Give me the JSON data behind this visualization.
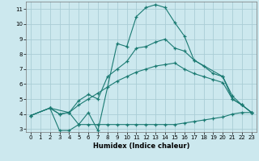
{
  "xlabel": "Humidex (Indice chaleur)",
  "xlim": [
    -0.5,
    23.5
  ],
  "ylim": [
    2.8,
    11.5
  ],
  "xticks": [
    0,
    1,
    2,
    3,
    4,
    5,
    6,
    7,
    8,
    9,
    10,
    11,
    12,
    13,
    14,
    15,
    16,
    17,
    18,
    19,
    20,
    21,
    22,
    23
  ],
  "yticks": [
    3,
    4,
    5,
    6,
    7,
    8,
    9,
    10,
    11
  ],
  "background_color": "#cce8ee",
  "grid_color": "#aacdd6",
  "line_color": "#1a7a72",
  "lines": [
    {
      "x": [
        0,
        2,
        3,
        4,
        5,
        6,
        7,
        8,
        9,
        10,
        11,
        12,
        13,
        14,
        15,
        16,
        17,
        18,
        19,
        20,
        21,
        22,
        23
      ],
      "y": [
        3.9,
        4.4,
        2.9,
        2.9,
        3.3,
        3.3,
        3.3,
        3.3,
        3.3,
        3.3,
        3.3,
        3.3,
        3.3,
        3.3,
        3.3,
        3.4,
        3.5,
        3.6,
        3.7,
        3.8,
        4.0,
        4.1,
        4.1
      ]
    },
    {
      "x": [
        0,
        2,
        3,
        4,
        5,
        6,
        7,
        8,
        9,
        10,
        11,
        12,
        13,
        14,
        15,
        16,
        17,
        18,
        19,
        20,
        21,
        22,
        23
      ],
      "y": [
        3.9,
        4.4,
        4.0,
        4.1,
        4.6,
        5.0,
        5.4,
        5.8,
        6.2,
        6.5,
        6.8,
        7.0,
        7.2,
        7.3,
        7.4,
        7.0,
        6.7,
        6.5,
        6.3,
        6.1,
        5.0,
        4.6,
        4.1
      ]
    },
    {
      "x": [
        0,
        2,
        3,
        4,
        5,
        6,
        7,
        8,
        9,
        10,
        11,
        12,
        13,
        14,
        15,
        16,
        17,
        18,
        19,
        20,
        21,
        22,
        23
      ],
      "y": [
        3.9,
        4.4,
        4.0,
        4.1,
        4.9,
        5.3,
        5.0,
        6.5,
        7.0,
        7.5,
        8.4,
        8.5,
        8.8,
        9.0,
        8.4,
        8.2,
        7.6,
        7.2,
        6.7,
        6.5,
        5.0,
        4.6,
        4.1
      ]
    },
    {
      "x": [
        2,
        4,
        5,
        6,
        7,
        9,
        10,
        11,
        12,
        13,
        14,
        15,
        16,
        17,
        20,
        21,
        22,
        23
      ],
      "y": [
        4.4,
        4.1,
        3.3,
        4.1,
        2.9,
        8.7,
        8.5,
        10.5,
        11.1,
        11.3,
        11.1,
        10.1,
        9.2,
        7.6,
        6.5,
        5.2,
        4.6,
        4.1
      ]
    }
  ]
}
